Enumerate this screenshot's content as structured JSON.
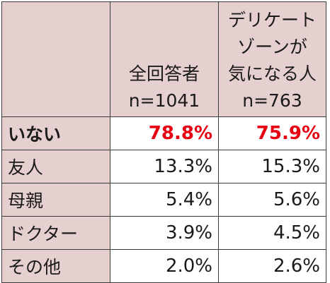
{
  "header": {
    "col1_line1": "全回答者",
    "col1_line2": "n=1041",
    "col2_line1": "デリケート",
    "col2_line2": "ゾーンが",
    "col2_line3": "気になる人",
    "col2_line4": "n=763"
  },
  "rows": [
    {
      "label": "いない",
      "all": "78.8%",
      "concerned": "75.9%"
    },
    {
      "label": "友人",
      "all": "13.3%",
      "concerned": "15.3%"
    },
    {
      "label": "母親",
      "all": "5.4%",
      "concerned": "5.6%"
    },
    {
      "label": "ドクター",
      "all": "3.9%",
      "concerned": "4.5%"
    },
    {
      "label": "その他",
      "all": "2.0%",
      "concerned": "2.6%"
    }
  ],
  "colors": {
    "header_bg": "#e6cfcf",
    "highlight_text": "#e60012",
    "border": "#3a3a3a"
  }
}
